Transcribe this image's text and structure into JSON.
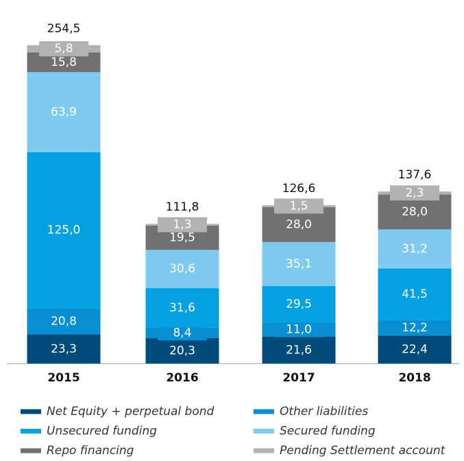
{
  "chart_data": {
    "type": "stacked-bar",
    "categories": [
      "2015",
      "2016",
      "2017",
      "2018"
    ],
    "series": [
      {
        "name": "Net Equity + perpetual bond",
        "color": "#004a7c",
        "values": [
          23.3,
          20.3,
          21.6,
          22.4
        ],
        "value_labels": [
          "23,3",
          "20,3",
          "21,6",
          "22,4"
        ]
      },
      {
        "name": "Other liabilities",
        "color": "#0a8ed3",
        "values": [
          20.8,
          8.4,
          11.0,
          12.2
        ],
        "value_labels": [
          "20,8",
          "8,4",
          "11,0",
          "12,2"
        ]
      },
      {
        "name": "Unsecured funding",
        "color": "#03a1e2",
        "values": [
          125.0,
          31.6,
          29.5,
          41.5
        ],
        "value_labels": [
          "125,0",
          "31,6",
          "29,5",
          "41,5"
        ]
      },
      {
        "name": "Secured funding",
        "color": "#7ecbef",
        "values": [
          63.9,
          30.6,
          35.1,
          31.2
        ],
        "value_labels": [
          "63,9",
          "30,6",
          "35,1",
          "31,2"
        ]
      },
      {
        "name": "Repo financing",
        "color": "#717173",
        "values": [
          15.8,
          19.5,
          28.0,
          28.0
        ],
        "value_labels": [
          "15,8",
          "19,5",
          "28,0",
          "28,0"
        ]
      },
      {
        "name": "Pending Settlement account",
        "color": "#b2b2b4",
        "values": [
          5.8,
          1.3,
          1.5,
          2.3
        ],
        "value_labels": [
          "5,8",
          "1,3",
          "1,5",
          "2,3"
        ]
      }
    ],
    "totals": [
      254.5,
      111.8,
      126.6,
      137.6
    ],
    "total_labels": [
      "254,5",
      "111,8",
      "126,6",
      "137,6"
    ]
  }
}
